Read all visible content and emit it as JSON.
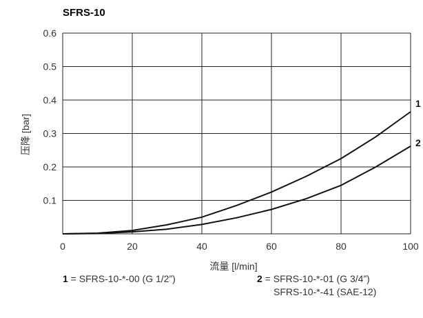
{
  "chart_data": {
    "type": "line",
    "title": "SFRS-10",
    "xlabel": "流量 [l/min]",
    "ylabel": "压降 [bar]",
    "xlim": [
      0,
      100
    ],
    "ylim": [
      0,
      0.6
    ],
    "xticks": [
      "0",
      "20",
      "40",
      "60",
      "80",
      "100"
    ],
    "yticks": [
      "0.1",
      "0.2",
      "0.3",
      "0.4",
      "0.5",
      "0.6"
    ],
    "grid": true,
    "series": [
      {
        "name": "1",
        "x": [
          0,
          10,
          20,
          30,
          40,
          50,
          60,
          70,
          80,
          90,
          100
        ],
        "y": [
          0,
          0.002,
          0.01,
          0.027,
          0.05,
          0.085,
          0.125,
          0.172,
          0.225,
          0.29,
          0.365
        ]
      },
      {
        "name": "2",
        "x": [
          0,
          10,
          20,
          30,
          40,
          50,
          60,
          70,
          80,
          90,
          100
        ],
        "y": [
          0,
          0.001,
          0.006,
          0.014,
          0.028,
          0.048,
          0.073,
          0.105,
          0.145,
          0.2,
          0.262
        ]
      }
    ]
  },
  "legend": {
    "item1": {
      "num": "1",
      "text": " = SFRS-10-*-00 (G 1/2”)"
    },
    "item2": {
      "num": "2",
      "text": " = SFRS-10-*-01 (G 3/4”)",
      "text2": "SFRS-10-*-41 (SAE-12)"
    }
  }
}
